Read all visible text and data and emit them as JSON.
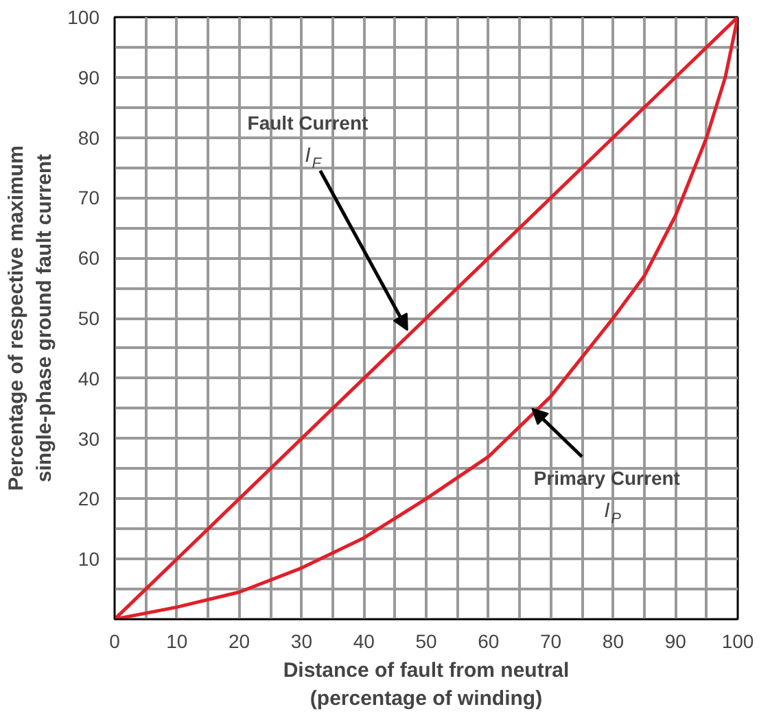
{
  "chart_data": {
    "type": "line",
    "xlabel": "Distance of fault from neutral\n(percentage of winding)",
    "ylabel": "Percentage of respective maximum\nsingle-phase ground fault current",
    "series": [
      {
        "color": "#e0202a",
        "x": [
          0,
          100
        ],
        "values": [
          0,
          100
        ]
      },
      {
        "color": "#e0202a",
        "x": [
          0,
          10,
          20,
          30,
          40,
          50,
          60,
          70,
          80,
          85,
          90,
          95,
          98,
          100
        ],
        "values": [
          0,
          2,
          4.5,
          8.5,
          13.5,
          20,
          27,
          37,
          50,
          57,
          67,
          80,
          90,
          100
        ]
      }
    ],
    "annotations": [
      {
        "text": "Fault Current\nI$_{F}$",
        "x": 47,
        "y": 48
      },
      {
        "text": "Primary Current\nI$_{P}$",
        "x": 67,
        "y": 35
      }
    ],
    "xlim": [
      0,
      100
    ],
    "ylim": [
      0,
      100
    ],
    "xticks": [
      0,
      {
        "value": 5,
        "label": null
      },
      10,
      {
        "value": 15,
        "label": null
      },
      20,
      {
        "value": 25,
        "label": null
      },
      30,
      {
        "value": 35,
        "label": null
      },
      40,
      {
        "value": 45,
        "label": null
      },
      50,
      {
        "value": 55,
        "label": null
      },
      60,
      {
        "value": 65,
        "label": null
      },
      70,
      {
        "value": 75,
        "label": null
      },
      80,
      {
        "value": 85,
        "label": null
      },
      90,
      {
        "value": 95,
        "label": null
      },
      100
    ],
    "yticks": [
      {
        "value": 0,
        "label": null
      },
      {
        "value": 5,
        "label": null
      },
      10,
      {
        "value": 15,
        "label": null
      },
      20,
      {
        "value": 25,
        "label": null
      },
      30,
      {
        "value": 35,
        "label": null
      },
      40,
      {
        "value": 45,
        "label": null
      },
      50,
      {
        "value": 55,
        "label": null
      },
      60,
      {
        "value": 65,
        "label": null
      },
      70,
      {
        "value": 75,
        "label": null
      },
      80,
      {
        "value": 85,
        "label": null
      },
      90,
      {
        "value": 95,
        "label": null
      },
      100
    ],
    "grid": true,
    "marker": "none",
    "line_style": "solid"
  }
}
